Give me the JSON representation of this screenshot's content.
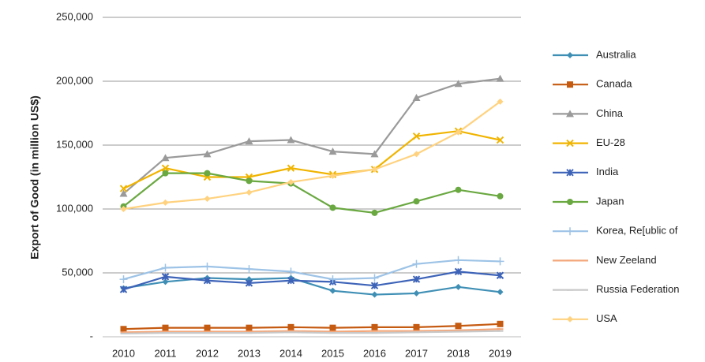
{
  "chart_data": {
    "type": "line",
    "y_axis_label": "Export of Good (in million  US$)",
    "categories": [
      "2010",
      "2011",
      "2012",
      "2013",
      "2014",
      "2015",
      "2016",
      "2017",
      "2018",
      "2019"
    ],
    "ylim": [
      0,
      250000
    ],
    "yticks": [
      {
        "value": 0,
        "label": "-"
      },
      {
        "value": 50000,
        "label": "50,000"
      },
      {
        "value": 100000,
        "label": "100,000"
      },
      {
        "value": 150000,
        "label": "150,000"
      },
      {
        "value": 200000,
        "label": "200,000"
      },
      {
        "value": 250000,
        "label": "250,000"
      }
    ],
    "grid": true,
    "legend": "right",
    "series": [
      {
        "name": "Australia",
        "color": "#3f8fb5",
        "values": [
          38000,
          43000,
          46000,
          45000,
          46000,
          36000,
          33000,
          34000,
          39000,
          35000
        ]
      },
      {
        "name": "Canada",
        "color": "#c55a11",
        "values": [
          6000,
          7000,
          7000,
          7000,
          7500,
          7000,
          7500,
          7500,
          8500,
          10000
        ]
      },
      {
        "name": "China",
        "color": "#9a9a9a",
        "values": [
          112000,
          140000,
          143000,
          153000,
          154000,
          145000,
          143000,
          187000,
          198000,
          202000
        ]
      },
      {
        "name": "EU-28",
        "color": "#f0b400",
        "values": [
          116000,
          132000,
          125000,
          125000,
          132000,
          127000,
          131000,
          157000,
          161000,
          154000
        ]
      },
      {
        "name": "India",
        "color": "#3d63b8",
        "values": [
          37000,
          47000,
          44000,
          42000,
          44000,
          43000,
          40000,
          45000,
          51000,
          48000
        ]
      },
      {
        "name": "Japan",
        "color": "#6aa841",
        "values": [
          102000,
          128000,
          128000,
          122000,
          120000,
          101000,
          97000,
          106000,
          115000,
          110000
        ]
      },
      {
        "name": "Korea, Re[ublic of",
        "color": "#9dc3e6",
        "values": [
          45000,
          54000,
          55000,
          53000,
          51000,
          45000,
          46000,
          57000,
          60000,
          59000
        ]
      },
      {
        "name": "New Zeeland",
        "color": "#f4a77a",
        "values": [
          3500,
          4000,
          4000,
          4000,
          4500,
          4000,
          4500,
          4500,
          5000,
          6000
        ]
      },
      {
        "name": "Russia Federation",
        "color": "#c8c8c8",
        "values": [
          2500,
          3000,
          3000,
          3000,
          3500,
          3000,
          3000,
          3500,
          4000,
          4500
        ]
      },
      {
        "name": "USA",
        "color": "#ffd27f",
        "values": [
          100000,
          105000,
          108000,
          113000,
          121000,
          126000,
          131000,
          143000,
          160000,
          184000
        ]
      }
    ]
  }
}
